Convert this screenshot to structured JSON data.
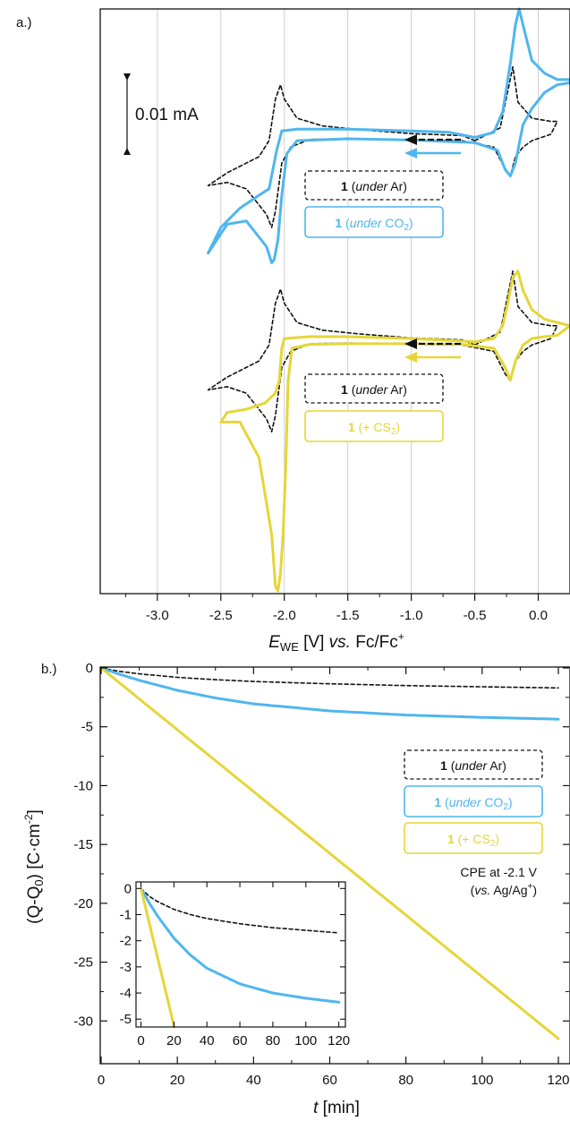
{
  "colors": {
    "ar": "#111111",
    "co2": "#4fb6ee",
    "cs2": "#e5d637",
    "grid": "#cfcfcf",
    "axis": "#111111"
  },
  "chart_data": [
    {
      "type": "line",
      "panel_label": "a.)",
      "xlabel_parts": {
        "E": "E",
        "sub": "WE",
        "unit": " [V] ",
        "vs": "vs.",
        "ref": " Fc/Fc",
        "sup": "+"
      },
      "xlim": [
        -3.45,
        0.25
      ],
      "xticks": [
        -3.0,
        -2.5,
        -2.0,
        -1.5,
        -1.0,
        -0.5,
        0.0
      ],
      "xtick_labels": [
        "-3.0",
        "-2.5",
        "-2.0",
        "-1.5",
        "-1.0",
        "-0.5",
        "0.0"
      ],
      "grid": true,
      "ylim": [
        -0.071,
        0.02
      ],
      "scale_bar": {
        "label": "0.01 mA",
        "value_mA": 0.01
      },
      "legend_groups": [
        {
          "entries": [
            {
              "bold": "1",
              "open": " (",
              "italic": "under",
              "close": " Ar)",
              "style": "dashed",
              "color": "#111111"
            },
            {
              "bold": "1",
              "open": " (",
              "italic": "under",
              "close": " CO",
              "sub": "2",
              "end": ")",
              "style": "solid",
              "color": "#4fb6ee"
            }
          ]
        },
        {
          "entries": [
            {
              "bold": "1",
              "open": " (",
              "italic": "under",
              "close": " Ar)",
              "style": "dashed",
              "color": "#111111"
            },
            {
              "bold": "1",
              "open": " (+ CS",
              "italic": "",
              "close": "",
              "sub": "2",
              "end": ")",
              "style": "solid",
              "color": "#e5d637"
            }
          ]
        }
      ],
      "series": [
        {
          "name": "1 (under Ar)",
          "style": "dashed",
          "color": "#111111",
          "offset": 0.0,
          "points": [
            [
              -0.5,
              -0.0005
            ],
            [
              -0.3,
              0.0015
            ],
            [
              -0.2,
              0.011
            ],
            [
              -0.16,
              0.0055
            ],
            [
              -0.05,
              0.003
            ],
            [
              0.1,
              0.0025
            ],
            [
              0.15,
              0.0025
            ],
            [
              0.1,
              0.0005
            ],
            [
              -0.05,
              -0.0005
            ],
            [
              -0.12,
              -0.0015
            ],
            [
              -0.18,
              -0.003
            ],
            [
              -0.22,
              -0.006
            ],
            [
              -0.26,
              -0.005
            ],
            [
              -0.35,
              -0.0015
            ],
            [
              -0.6,
              -0.0005
            ],
            [
              -1.0,
              -0.0004
            ],
            [
              -1.5,
              -0.0002
            ],
            [
              -1.8,
              -0.0003
            ],
            [
              -1.95,
              -0.0015
            ],
            [
              -2.02,
              -0.004
            ],
            [
              -2.07,
              -0.0115
            ],
            [
              -2.1,
              -0.014
            ],
            [
              -2.14,
              -0.012
            ],
            [
              -2.3,
              -0.008
            ],
            [
              -2.45,
              -0.007
            ],
            [
              -2.6,
              -0.0075
            ],
            [
              -2.45,
              -0.0055
            ],
            [
              -2.3,
              -0.004
            ],
            [
              -2.2,
              -0.003
            ],
            [
              -2.12,
              -0.0005
            ],
            [
              -2.07,
              0.006
            ],
            [
              -2.03,
              0.0082
            ],
            [
              -2.0,
              0.006
            ],
            [
              -1.9,
              0.003
            ],
            [
              -1.7,
              0.0018
            ],
            [
              -1.4,
              0.0012
            ],
            [
              -1.0,
              0.0006
            ],
            [
              -0.6,
              0.0003
            ],
            [
              -0.5,
              -0.0005
            ]
          ]
        },
        {
          "name": "1 (under CO2)",
          "style": "solid",
          "color": "#4fb6ee",
          "offset": 0.0,
          "points": [
            [
              -0.5,
              0.0
            ],
            [
              -0.35,
              0.0008
            ],
            [
              -0.28,
              0.004
            ],
            [
              -0.22,
              0.0115
            ],
            [
              -0.18,
              0.0175
            ],
            [
              -0.15,
              0.02
            ],
            [
              -0.12,
              0.0175
            ],
            [
              -0.05,
              0.012
            ],
            [
              0.05,
              0.01
            ],
            [
              0.15,
              0.009
            ],
            [
              0.25,
              0.009
            ],
            [
              0.25,
              0.0085
            ],
            [
              0.15,
              0.0082
            ],
            [
              0.05,
              0.007
            ],
            [
              -0.05,
              0.0045
            ],
            [
              -0.12,
              0.002
            ],
            [
              -0.18,
              -0.004
            ],
            [
              -0.22,
              -0.006
            ],
            [
              -0.26,
              -0.005
            ],
            [
              -0.32,
              -0.002
            ],
            [
              -0.5,
              -0.0008
            ],
            [
              -1.0,
              -0.0004
            ],
            [
              -1.5,
              -0.0002
            ],
            [
              -1.9,
              -0.0005
            ],
            [
              -1.98,
              -0.0025
            ],
            [
              -2.02,
              -0.009
            ],
            [
              -2.05,
              -0.016
            ],
            [
              -2.08,
              -0.019
            ],
            [
              -2.1,
              -0.0195
            ],
            [
              -2.14,
              -0.017
            ],
            [
              -2.3,
              -0.013
            ],
            [
              -2.45,
              -0.0135
            ],
            [
              -2.6,
              -0.018
            ],
            [
              -2.5,
              -0.014
            ],
            [
              -2.35,
              -0.011
            ],
            [
              -2.2,
              -0.009
            ],
            [
              -2.12,
              -0.008
            ],
            [
              -2.06,
              -0.002
            ],
            [
              -2.02,
              0.001
            ],
            [
              -1.9,
              0.0013
            ],
            [
              -1.5,
              0.0013
            ],
            [
              -1.0,
              0.001
            ],
            [
              -0.7,
              0.0008
            ],
            [
              -0.5,
              0.0
            ]
          ]
        },
        {
          "name": "1 (under Ar)",
          "style": "dashed",
          "color": "#111111",
          "offset": -0.0318,
          "points": [
            [
              -0.5,
              -0.0005
            ],
            [
              -0.3,
              0.0015
            ],
            [
              -0.2,
              0.011
            ],
            [
              -0.16,
              0.0055
            ],
            [
              -0.05,
              0.003
            ],
            [
              0.1,
              0.0025
            ],
            [
              0.15,
              0.0025
            ],
            [
              0.1,
              0.0005
            ],
            [
              -0.05,
              -0.0005
            ],
            [
              -0.12,
              -0.0015
            ],
            [
              -0.18,
              -0.003
            ],
            [
              -0.22,
              -0.006
            ],
            [
              -0.26,
              -0.005
            ],
            [
              -0.35,
              -0.0015
            ],
            [
              -0.6,
              -0.0005
            ],
            [
              -1.0,
              -0.0004
            ],
            [
              -1.5,
              -0.0002
            ],
            [
              -1.8,
              -0.0003
            ],
            [
              -1.95,
              -0.0015
            ],
            [
              -2.02,
              -0.004
            ],
            [
              -2.07,
              -0.0115
            ],
            [
              -2.1,
              -0.014
            ],
            [
              -2.14,
              -0.012
            ],
            [
              -2.3,
              -0.008
            ],
            [
              -2.45,
              -0.007
            ],
            [
              -2.6,
              -0.0075
            ],
            [
              -2.45,
              -0.0055
            ],
            [
              -2.3,
              -0.004
            ],
            [
              -2.2,
              -0.003
            ],
            [
              -2.12,
              -0.0005
            ],
            [
              -2.07,
              0.006
            ],
            [
              -2.03,
              0.0082
            ],
            [
              -2.0,
              0.006
            ],
            [
              -1.9,
              0.003
            ],
            [
              -1.7,
              0.0018
            ],
            [
              -1.4,
              0.0012
            ],
            [
              -1.0,
              0.0006
            ],
            [
              -0.6,
              0.0003
            ],
            [
              -0.5,
              -0.0005
            ]
          ]
        },
        {
          "name": "1 (+ CS2)",
          "style": "solid",
          "color": "#e5d637",
          "offset": -0.0318,
          "points": [
            [
              -0.5,
              0.0
            ],
            [
              -0.35,
              0.0005
            ],
            [
              -0.28,
              0.0025
            ],
            [
              -0.24,
              0.006
            ],
            [
              -0.2,
              0.01
            ],
            [
              -0.16,
              0.011
            ],
            [
              -0.12,
              0.008
            ],
            [
              -0.05,
              0.005
            ],
            [
              0.05,
              0.0035
            ],
            [
              0.15,
              0.003
            ],
            [
              0.25,
              0.0025
            ],
            [
              0.15,
              0.001
            ],
            [
              0.05,
              0.0008
            ],
            [
              -0.05,
              0.0005
            ],
            [
              -0.12,
              -0.0005
            ],
            [
              -0.18,
              -0.003
            ],
            [
              -0.22,
              -0.006
            ],
            [
              -0.26,
              -0.004
            ],
            [
              -0.35,
              -0.001
            ],
            [
              -0.6,
              -0.0004
            ],
            [
              -1.0,
              -0.0003
            ],
            [
              -1.5,
              -0.0003
            ],
            [
              -1.8,
              -0.0004
            ],
            [
              -1.94,
              -0.001
            ],
            [
              -1.97,
              -0.006
            ],
            [
              -1.99,
              -0.02
            ],
            [
              -2.01,
              -0.03
            ],
            [
              -2.03,
              -0.036
            ],
            [
              -2.05,
              -0.0388
            ],
            [
              -2.07,
              -0.038
            ],
            [
              -2.1,
              -0.03
            ],
            [
              -2.2,
              -0.018
            ],
            [
              -2.35,
              -0.0125
            ],
            [
              -2.5,
              -0.0125
            ],
            [
              -2.45,
              -0.011
            ],
            [
              -2.3,
              -0.0105
            ],
            [
              -2.15,
              -0.0095
            ],
            [
              -2.07,
              -0.008
            ],
            [
              -2.04,
              -0.006
            ],
            [
              -2.02,
              -0.001
            ],
            [
              -2.0,
              0.0005
            ],
            [
              -1.8,
              0.0008
            ],
            [
              -1.5,
              0.0008
            ],
            [
              -1.0,
              0.0005
            ],
            [
              -0.5,
              0.0
            ]
          ]
        }
      ]
    },
    {
      "type": "line",
      "panel_label": "b.)",
      "xlabel_parts": {
        "t": "t",
        "unit": " [min]"
      },
      "ylabel_parts": {
        "pre": "(Q-Q",
        "sub": "0",
        "mid": ") [C·cm",
        "sup": "-2",
        "end": "]"
      },
      "xlim": [
        0,
        120
      ],
      "ylim": [
        -32,
        0.5
      ],
      "xticks": [
        0,
        20,
        40,
        60,
        80,
        100,
        120
      ],
      "xtick_labels": [
        "0",
        "20",
        "40",
        "60",
        "80",
        "100",
        "120"
      ],
      "yticks": [
        0,
        -5,
        -10,
        -15,
        -20,
        -25,
        -30
      ],
      "ytick_labels": [
        "0",
        "-5",
        "-10",
        "-15",
        "-20",
        "-25",
        "-30"
      ],
      "annotation": {
        "line1": "CPE at -2.1 V",
        "line2_open": "(",
        "line2_italic": "vs.",
        "line2_rest": " Ag/Ag",
        "line2_sup": "+",
        "line2_close": ")"
      },
      "legend": [
        {
          "bold": "1",
          "open": " (",
          "italic": "under",
          "close": " Ar)",
          "sub": "",
          "end": "",
          "style": "dashed",
          "color": "#111111"
        },
        {
          "bold": "1",
          "open": " (",
          "italic": "under",
          "close": " CO",
          "sub": "2",
          "end": ")",
          "style": "solid",
          "color": "#4fb6ee"
        },
        {
          "bold": "1",
          "open": " (+ CS",
          "italic": "",
          "close": "",
          "sub": "2",
          "end": ")",
          "style": "solid",
          "color": "#e5d637"
        }
      ],
      "series": [
        {
          "name": "1 (under Ar)",
          "style": "dashed",
          "color": "#111111",
          "x": [
            0,
            5,
            10,
            20,
            30,
            40,
            60,
            80,
            100,
            120
          ],
          "y": [
            0,
            -0.3,
            -0.5,
            -0.8,
            -1.0,
            -1.15,
            -1.35,
            -1.5,
            -1.6,
            -1.7
          ]
        },
        {
          "name": "1 (under CO2)",
          "style": "solid",
          "color": "#4fb6ee",
          "x": [
            0,
            5,
            10,
            20,
            30,
            40,
            60,
            80,
            100,
            120
          ],
          "y": [
            0,
            -0.55,
            -1.05,
            -1.9,
            -2.55,
            -3.05,
            -3.65,
            -4.0,
            -4.2,
            -4.35
          ]
        },
        {
          "name": "1 (+ CS2)",
          "style": "solid",
          "color": "#e5d637",
          "x": [
            0,
            20,
            40,
            60,
            80,
            100,
            120
          ],
          "y": [
            0,
            -5.25,
            -10.5,
            -15.75,
            -21.0,
            -26.25,
            -31.5
          ]
        }
      ],
      "inset": {
        "xlim": [
          -3,
          124
        ],
        "ylim": [
          -5.3,
          0.25
        ],
        "xticks": [
          0,
          20,
          40,
          60,
          80,
          100,
          120
        ],
        "xtick_labels": [
          "0",
          "20",
          "40",
          "60",
          "80",
          "100",
          "120"
        ],
        "yticks": [
          0,
          -1,
          -2,
          -3,
          -4,
          -5
        ],
        "ytick_labels": [
          "0",
          "-1",
          "-2",
          "-3",
          "-4",
          "-5"
        ]
      }
    }
  ]
}
